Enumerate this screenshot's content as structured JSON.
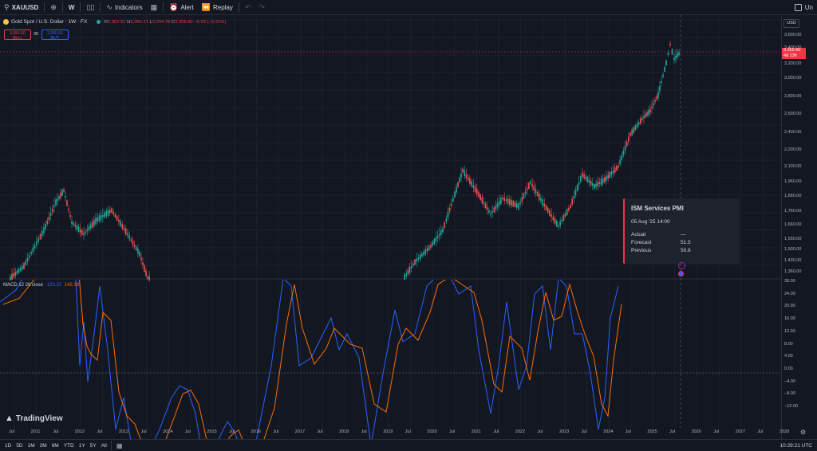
{
  "toolbar": {
    "symbol": "XAUUSD",
    "interval": "W",
    "indicators_label": "Indicators",
    "alert_label": "Alert",
    "replay_label": "Replay",
    "right_partial": "Un"
  },
  "legend": {
    "instrument": "Gold Spot / U.S. Dollar · 1W · FX",
    "open_label": "O",
    "open": "3,362.51",
    "high_label": "H",
    "high": "3,366.21",
    "low_label": "L",
    "low": "3,344.78",
    "close_label": "C",
    "close": "3,355.60",
    "change": "−6.93 (−0.21%)",
    "sell_price": "3,355.60",
    "sell_label": "SELL",
    "spread": "30",
    "buy_price": "3,355.90",
    "buy_label": "BUY"
  },
  "price_axis": {
    "currency": "USD",
    "labels": [
      "3,600.00",
      "3,400.00",
      "3,200.00",
      "3,000.00",
      "2,800.00",
      "2,600.00",
      "2,400.00",
      "2,200.00",
      "2,100.00",
      "1,960.00",
      "1,860.00",
      "1,760.00",
      "1,660.00",
      "1,560.00",
      "1,500.00",
      "1,430.00",
      "1,360.00"
    ],
    "last_price": "3,355.60",
    "countdown": "4d 13h"
  },
  "macd": {
    "label": "MACD 12 26 close",
    "value1": "123.22",
    "value2": "142.39",
    "axis_labels": [
      "28.00",
      "24.00",
      "20.00",
      "16.00",
      "12.00",
      "8.00",
      "4.00",
      "0.00",
      "−4.00",
      "−8.00",
      "−12.00"
    ]
  },
  "event": {
    "title": "ISM Services PMI",
    "datetime": "05 Aug '25 14:00",
    "actual_label": "Actual",
    "actual": "—",
    "forecast_label": "Forecast",
    "forecast": "51.5",
    "previous_label": "Previous",
    "previous": "50.8"
  },
  "time_axis": [
    "Jul",
    "2011",
    "Jul",
    "2012",
    "Jul",
    "2013",
    "Jul",
    "2014",
    "Jul",
    "2015",
    "Jul",
    "2016",
    "Jul",
    "2017",
    "Jul",
    "2018",
    "Jul",
    "2019",
    "Jul",
    "2020",
    "Jul",
    "2021",
    "Jul",
    "2022",
    "Jul",
    "2023",
    "Jul",
    "2024",
    "Jul",
    "2025",
    "Jul",
    "2026",
    "Jul",
    "2027",
    "Jul",
    "2028"
  ],
  "bottom_bar": {
    "ranges": [
      "1D",
      "5D",
      "1M",
      "3M",
      "6M",
      "YTD",
      "1Y",
      "5Y",
      "All"
    ],
    "clock": "10:29:21 UTC"
  },
  "logo": "TradingView",
  "colors": {
    "background": "#131722",
    "up": "#26a69a",
    "down": "#ef5350",
    "macd_line": "#2962ff",
    "signal_line": "#ff6d00",
    "sell": "#f23645",
    "buy": "#2962ff"
  }
}
